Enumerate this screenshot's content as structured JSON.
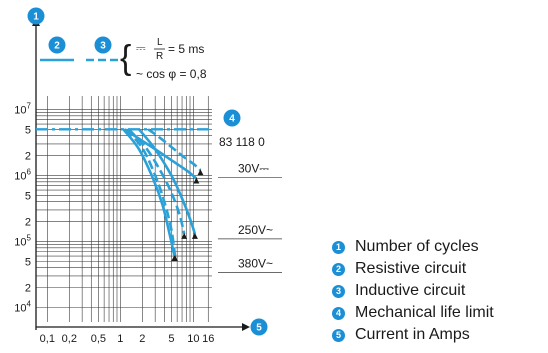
{
  "chart_data": {
    "type": "line",
    "title": "",
    "xlabel": "",
    "ylabel": "",
    "x_scale": "log",
    "y_scale": "log",
    "xlim": [
      0.07,
      18
    ],
    "ylim": [
      6000,
      16000000
    ],
    "x_tick_labels": [
      {
        "value": 0.1,
        "text": "0,1"
      },
      {
        "value": 0.2,
        "text": "0,2"
      },
      {
        "value": 0.5,
        "text": "0,5"
      },
      {
        "value": 1,
        "text": "1"
      },
      {
        "value": 2,
        "text": "2"
      },
      {
        "value": 5,
        "text": "5"
      },
      {
        "value": 10,
        "text": "10"
      },
      {
        "value": 16,
        "text": "16"
      }
    ],
    "y_ticks": [
      {
        "value": 10000000,
        "base": "10",
        "exp": "7"
      },
      {
        "value": 5000000,
        "base": "5",
        "exp": ""
      },
      {
        "value": 2000000,
        "base": "2",
        "exp": ""
      },
      {
        "value": 1000000,
        "base": "10",
        "exp": "6"
      },
      {
        "value": 500000,
        "base": "5",
        "exp": ""
      },
      {
        "value": 200000,
        "base": "2",
        "exp": ""
      },
      {
        "value": 100000,
        "base": "10",
        "exp": "5"
      },
      {
        "value": 50000,
        "base": "5",
        "exp": ""
      },
      {
        "value": 20000,
        "base": "2",
        "exp": ""
      },
      {
        "value": 10000,
        "base": "10",
        "exp": "4"
      }
    ],
    "mechanical_life": {
      "value": 5000000,
      "label": "83 118 0"
    },
    "curve_labels": [
      {
        "text": "30V⎓",
        "y": 1100000
      },
      {
        "text": "250V~",
        "y": 130000
      },
      {
        "text": "380V~",
        "y": 40000
      }
    ],
    "series": [
      {
        "style": "resistive",
        "voltage": "30V DC",
        "x": [
          1.15,
          1.8,
          3,
          5,
          8,
          11
        ],
        "y": [
          5000000,
          3600000,
          2500000,
          1700000,
          1200000,
          900000
        ]
      },
      {
        "style": "inductive",
        "voltage": "30V DC",
        "x": [
          2.4,
          3.4,
          5,
          7,
          10,
          12.5
        ],
        "y": [
          5000000,
          3800000,
          2700000,
          2000000,
          1500000,
          1200000
        ]
      },
      {
        "style": "resistive",
        "voltage": "250V AC",
        "x": [
          1.8,
          3,
          5,
          7,
          9,
          10.5
        ],
        "y": [
          5000000,
          2500000,
          1000000,
          450000,
          220000,
          130000
        ]
      },
      {
        "style": "inductive",
        "voltage": "250V AC",
        "x": [
          1.3,
          2.2,
          3.5,
          5,
          6.5,
          7.5
        ],
        "y": [
          5000000,
          2700000,
          1200000,
          550000,
          250000,
          130000
        ]
      },
      {
        "style": "resistive",
        "voltage": "380V AC",
        "x": [
          1.1,
          1.8,
          2.8,
          3.8,
          4.8,
          5.5
        ],
        "y": [
          5000000,
          2500000,
          900000,
          350000,
          120000,
          60000
        ]
      },
      {
        "style": "inductive",
        "voltage": "380V AC",
        "x": [
          1.2,
          2,
          3,
          4,
          5,
          5.6
        ],
        "y": [
          5000000,
          2600000,
          1000000,
          400000,
          150000,
          60000
        ]
      }
    ],
    "line_legend": {
      "resistive_number": "2",
      "inductive_number": "3",
      "dc_symbol": "⎓",
      "ratio_num": "L",
      "ratio_den": "R",
      "ratio_value": "= 5 ms",
      "ac_text": "~ cos φ = 0,8"
    },
    "markers": {
      "y_axis": "1",
      "mech_life": "4",
      "x_axis": "5"
    },
    "colors": {
      "curve": "#2aa1d8",
      "badge": "#1a8fd6",
      "grid": "#3a3a3a",
      "text": "#1a1a1a"
    }
  },
  "legend": [
    {
      "number": "1",
      "text": "Number of cycles"
    },
    {
      "number": "2",
      "text": "Resistive circuit"
    },
    {
      "number": "3",
      "text": "Inductive circuit"
    },
    {
      "number": "4",
      "text": "Mechanical life limit"
    },
    {
      "number": "5",
      "text": "Current in Amps"
    }
  ]
}
